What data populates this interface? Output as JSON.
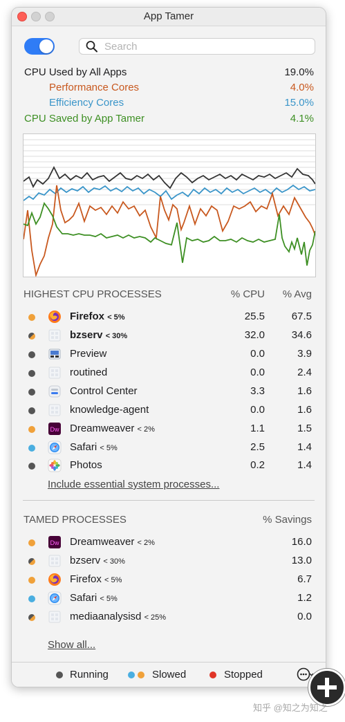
{
  "window": {
    "title": "App Tamer"
  },
  "search": {
    "placeholder": "Search"
  },
  "stats": [
    {
      "label": "CPU Used by All Apps",
      "value": "19.0%",
      "color": "#1d1d1f"
    },
    {
      "label": "Performance Cores",
      "value": "4.0%",
      "color": "#c8581e"
    },
    {
      "label": "Efficiency Cores",
      "value": "15.0%",
      "color": "#3a95c9"
    },
    {
      "label": "CPU Saved by App Tamer",
      "value": "4.1%",
      "color": "#3d8f23"
    }
  ],
  "highest": {
    "heading": "HIGHEST CPU PROCESSES",
    "col_cpu": "% CPU",
    "col_avg": "% Avg",
    "rows": [
      {
        "name": "Firefox",
        "limit": "< 5%",
        "cpu": "25.5",
        "avg": "67.5"
      },
      {
        "name": "bzserv",
        "limit": "< 30%",
        "cpu": "32.0",
        "avg": "34.6"
      },
      {
        "name": "Preview",
        "limit": "",
        "cpu": "0.0",
        "avg": "3.9"
      },
      {
        "name": "routined",
        "limit": "",
        "cpu": "0.0",
        "avg": "2.4"
      },
      {
        "name": "Control Center",
        "limit": "",
        "cpu": "3.3",
        "avg": "1.6"
      },
      {
        "name": "knowledge-agent",
        "limit": "",
        "cpu": "0.0",
        "avg": "1.6"
      },
      {
        "name": "Dreamweaver",
        "limit": "< 2%",
        "cpu": "1.1",
        "avg": "1.5"
      },
      {
        "name": "Safari",
        "limit": "< 5%",
        "cpu": "2.5",
        "avg": "1.4"
      },
      {
        "name": "Photos",
        "limit": "",
        "cpu": "0.2",
        "avg": "1.4"
      }
    ],
    "link": "Include essential system processes..."
  },
  "tamed": {
    "heading": "TAMED PROCESSES",
    "col_savings": "% Savings",
    "rows": [
      {
        "name": "Dreamweaver",
        "limit": "< 2%",
        "savings": "16.0"
      },
      {
        "name": "bzserv",
        "limit": "< 30%",
        "savings": "13.0"
      },
      {
        "name": "Firefox",
        "limit": "< 5%",
        "savings": "6.7"
      },
      {
        "name": "Safari",
        "limit": "< 5%",
        "savings": "1.2"
      },
      {
        "name": "mediaanalysisd",
        "limit": "< 25%",
        "savings": "0.0"
      }
    ],
    "link": "Show all..."
  },
  "legend": {
    "running": "Running",
    "slowed": "Slowed",
    "stopped": "Stopped"
  },
  "colors": {
    "running": "#555555",
    "slowed_blue": "#4aaee0",
    "slowed_orange": "#f0a13a",
    "stopped": "#e03527",
    "accent": "#2f7cf6"
  },
  "watermark": "知乎 @知之为知之"
}
